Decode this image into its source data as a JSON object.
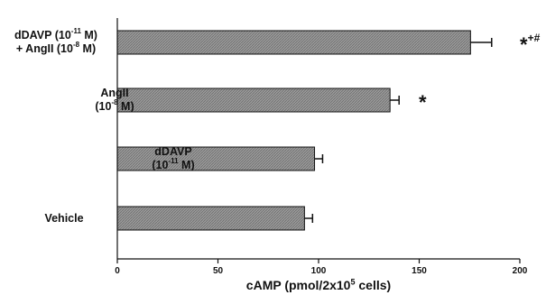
{
  "chart_data": {
    "type": "bar",
    "orientation": "horizontal",
    "title": "",
    "categories": [
      {
        "line1": "dDAVP (10",
        "sup1": "-11",
        "line1_end": " M)",
        "line2": "+ AngII (10",
        "sup2": "-8",
        "line2_end": " M)"
      },
      {
        "line1": "AngII",
        "sup1": "",
        "line1_end": "",
        "line2": "(10",
        "sup2": "-8",
        "line2_end": " M)"
      },
      {
        "line1": "dDAVP",
        "sup1": "",
        "line1_end": "",
        "line2": "(10",
        "sup2": "-11",
        "line2_end": " M)"
      },
      {
        "line1": "Vehicle",
        "sup1": "",
        "line1_end": "",
        "line2": "",
        "sup2": "",
        "line2_end": ""
      }
    ],
    "values": [
      175.5,
      135.5,
      98,
      93
    ],
    "errors": [
      10.5,
      4.5,
      4,
      4
    ],
    "annotations": [
      {
        "star": "*",
        "sup": "+#"
      },
      {
        "star": "*",
        "sup": ""
      },
      {
        "star": "",
        "sup": ""
      },
      {
        "star": "",
        "sup": ""
      }
    ],
    "xlabel": {
      "prefix": "cAMP (pmol/2x10",
      "sup": "5",
      "suffix": " cells)"
    },
    "xlim": [
      0,
      200
    ],
    "xticks": [
      "0",
      "50",
      "100",
      "150",
      "200"
    ],
    "bar_color": "#8e8e8e",
    "grid": false
  }
}
